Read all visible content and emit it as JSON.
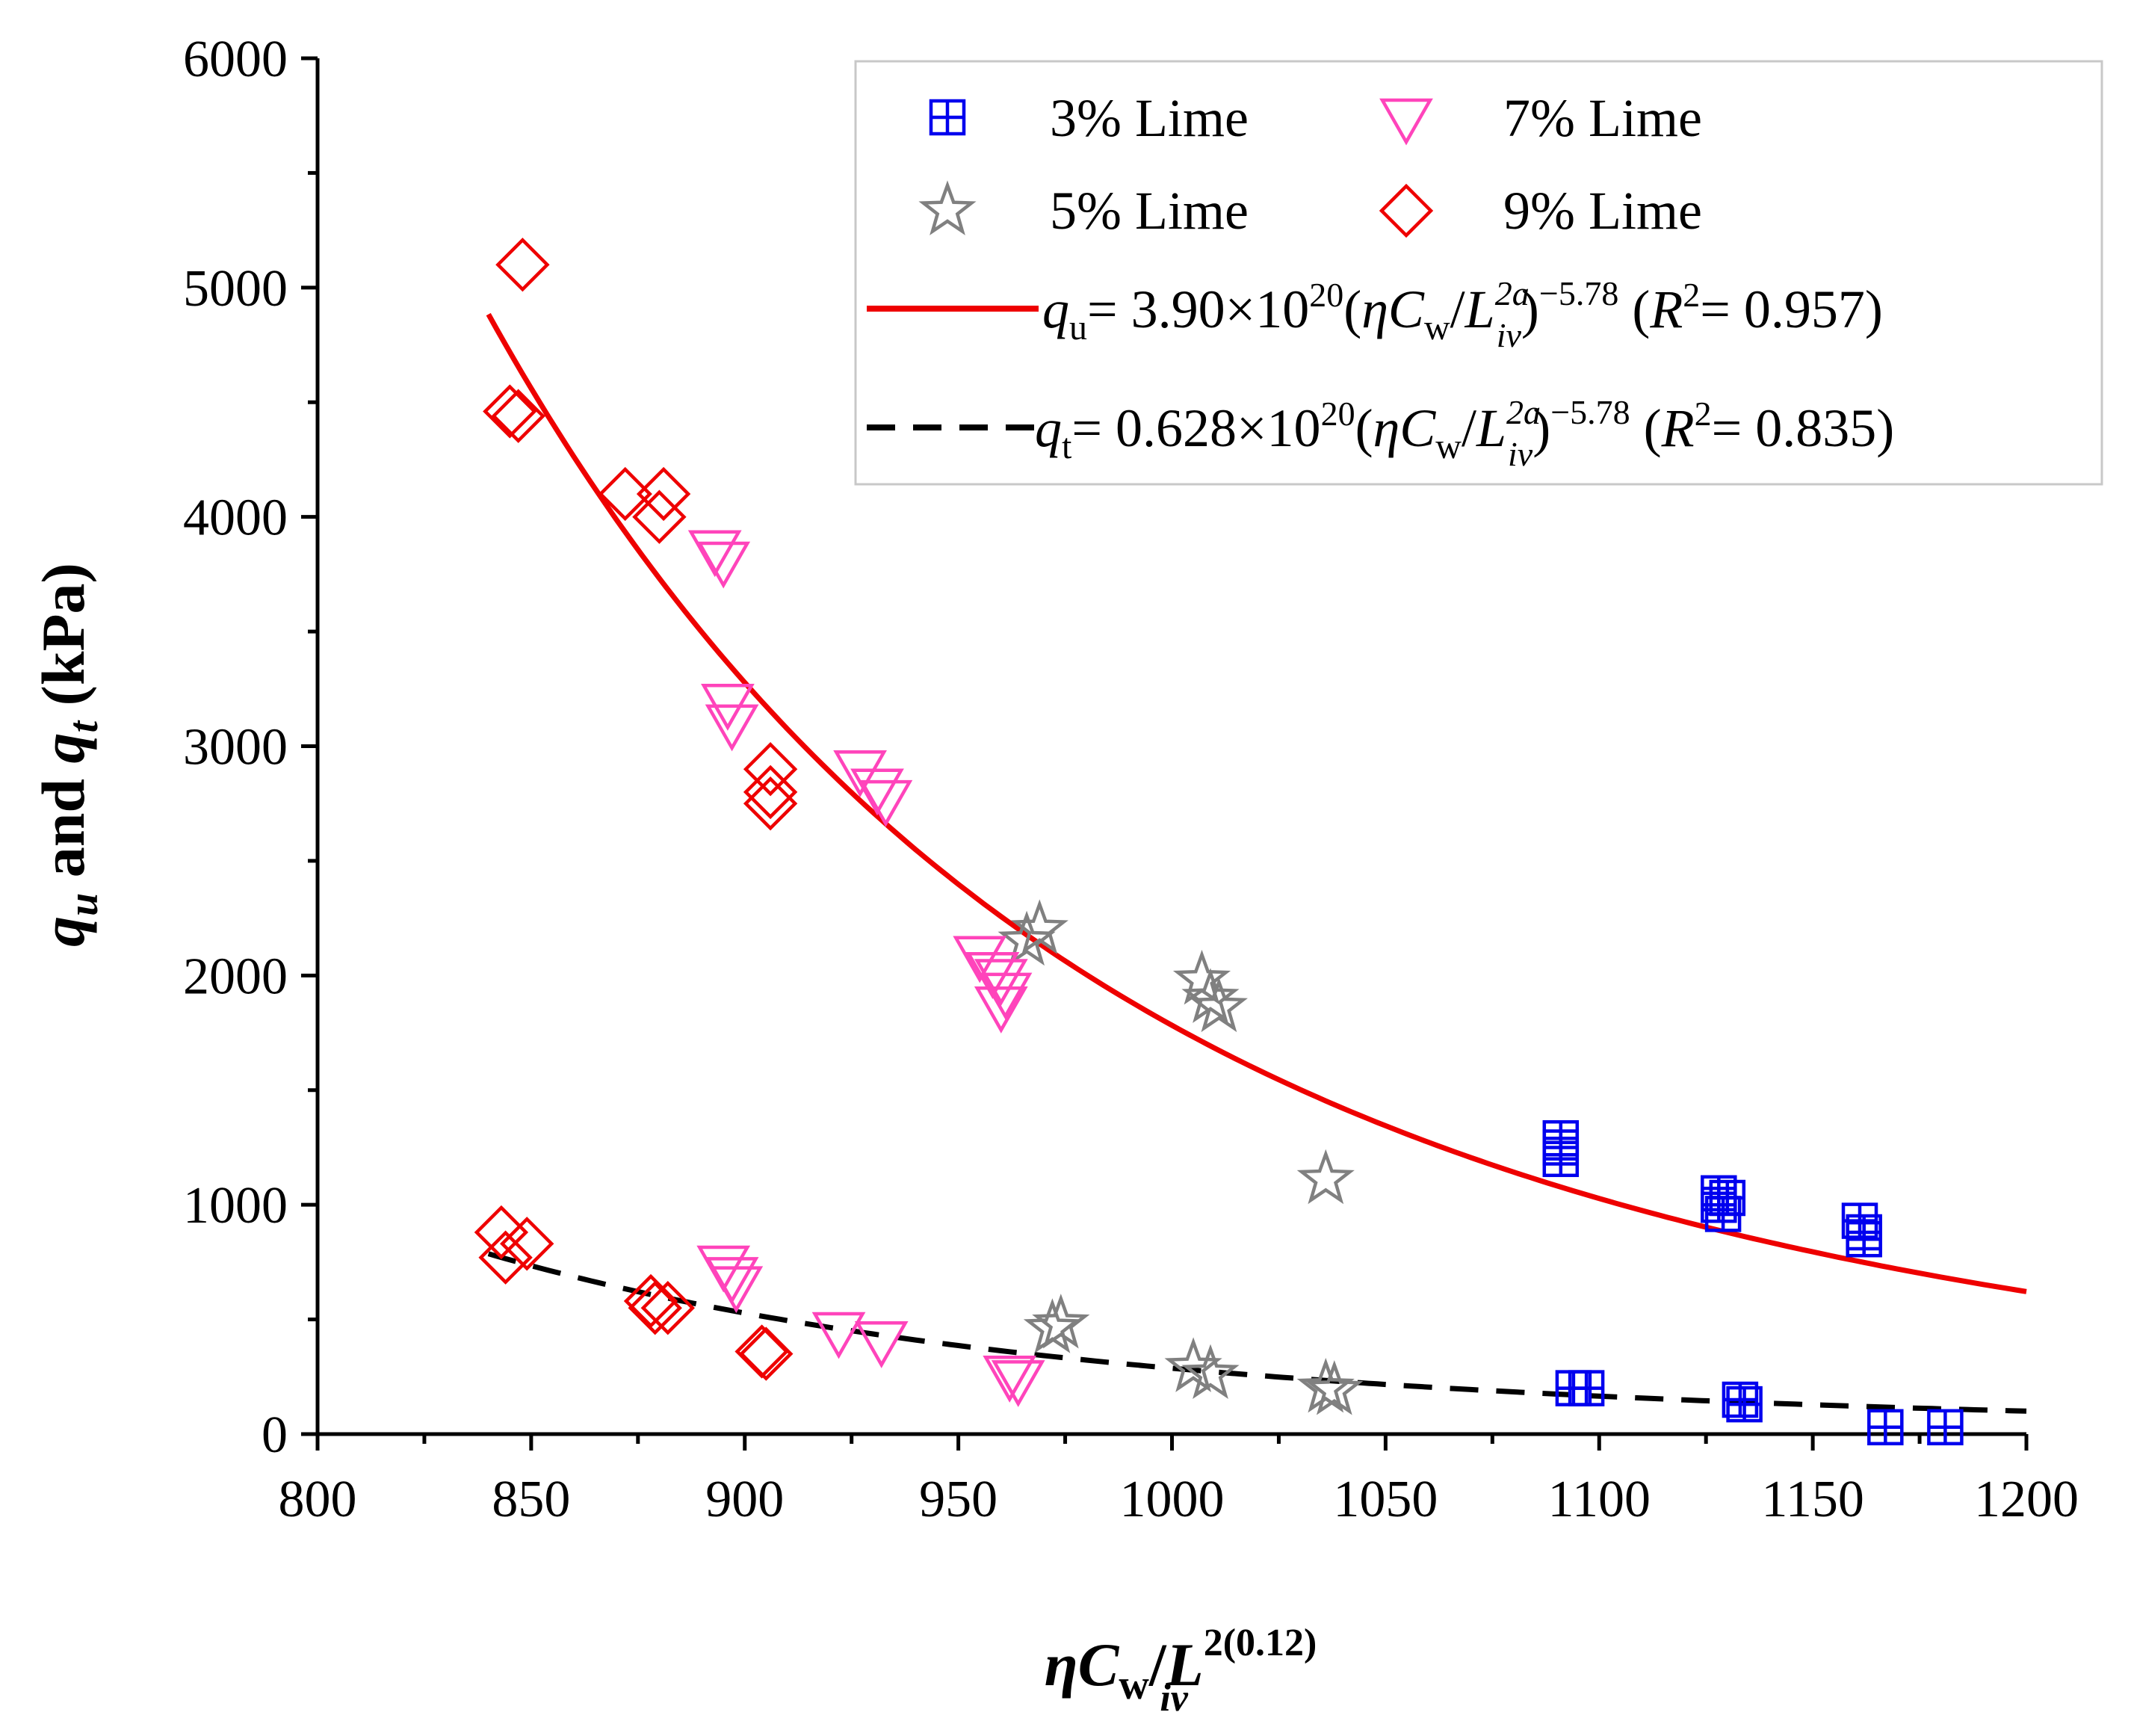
{
  "chart_data": {
    "type": "scatter",
    "title": "",
    "xlabel": "ηCw/Liv^2(0.12)",
    "ylabel": "qu and qt (kPa)",
    "xlim": [
      800,
      1200
    ],
    "ylim": [
      0,
      6000
    ],
    "x_ticks": [
      800,
      850,
      900,
      950,
      1000,
      1050,
      1100,
      1150,
      1200
    ],
    "y_ticks": [
      0,
      1000,
      2000,
      3000,
      4000,
      5000,
      6000
    ],
    "x_tick_labels": [
      "800",
      "850",
      "900",
      "950",
      "1000",
      "1050",
      "1100",
      "1150",
      "1200"
    ],
    "y_tick_labels": [
      "0",
      "1000",
      "2000",
      "3000",
      "4000",
      "5000",
      "6000"
    ],
    "legend_position": "top-right",
    "series": [
      {
        "name": "3% Lime",
        "marker": "square-cross",
        "color": "#0000ee",
        "points": [
          [
            1091,
            1290
          ],
          [
            1091,
            1250
          ],
          [
            1091,
            1200
          ],
          [
            1128,
            1050
          ],
          [
            1128,
            1000
          ],
          [
            1129,
            960
          ],
          [
            1130,
            1030
          ],
          [
            1161,
            930
          ],
          [
            1162,
            880
          ],
          [
            1162,
            850
          ],
          [
            1094,
            200
          ],
          [
            1097,
            200
          ],
          [
            1133,
            150
          ],
          [
            1134,
            130
          ],
          [
            1167,
            30
          ],
          [
            1181,
            30
          ]
        ]
      },
      {
        "name": "5% Lime",
        "marker": "star",
        "color": "#808080",
        "points": [
          [
            966,
            2150
          ],
          [
            969,
            2200
          ],
          [
            1007,
            1980
          ],
          [
            1009,
            1900
          ],
          [
            1011,
            1860
          ],
          [
            1036,
            1110
          ],
          [
            972,
            460
          ],
          [
            974,
            480
          ],
          [
            1005,
            290
          ],
          [
            1009,
            260
          ],
          [
            1036,
            200
          ],
          [
            1038,
            190
          ]
        ]
      },
      {
        "name": "7% Lime",
        "marker": "triangle-down",
        "color": "#ff44bb",
        "points": [
          [
            893,
            3850
          ],
          [
            895,
            3800
          ],
          [
            896,
            3180
          ],
          [
            897,
            3090
          ],
          [
            927,
            2890
          ],
          [
            931,
            2810
          ],
          [
            933,
            2760
          ],
          [
            955,
            2080
          ],
          [
            958,
            2010
          ],
          [
            960,
            1980
          ],
          [
            961,
            1920
          ],
          [
            960,
            1860
          ],
          [
            895,
            730
          ],
          [
            897,
            680
          ],
          [
            898,
            640
          ],
          [
            922,
            440
          ],
          [
            932,
            400
          ],
          [
            962,
            250
          ],
          [
            964,
            230
          ]
        ]
      },
      {
        "name": "9% Lime",
        "marker": "diamond",
        "color": "#ee0000",
        "points": [
          [
            848,
            5100
          ],
          [
            845,
            4460
          ],
          [
            847,
            4440
          ],
          [
            872,
            4100
          ],
          [
            880,
            4000
          ],
          [
            881,
            4100
          ],
          [
            906,
            2900
          ],
          [
            906,
            2800
          ],
          [
            906,
            2750
          ],
          [
            843,
            880
          ],
          [
            844,
            770
          ],
          [
            849,
            830
          ],
          [
            878,
            580
          ],
          [
            879,
            550
          ],
          [
            882,
            550
          ],
          [
            904,
            360
          ],
          [
            905,
            350
          ]
        ]
      }
    ],
    "fits": [
      {
        "name": "qu fit",
        "equation_label": "qu = 3.90×10^20(ηCw/Liv^2a)^−5.78 (R^2 = 0.957)",
        "coefficient": 3.9e+20,
        "exponent": -5.78,
        "r2": 0.957,
        "x_range": [
          840,
          1200
        ],
        "style": "solid",
        "color": "#ee0000"
      },
      {
        "name": "qt fit",
        "equation_label": "qt = 0.628×10^20(ηCw/Liv^2a)^−5.78 (R^2 = 0.835)",
        "coefficient": 6.28e+19,
        "exponent": -5.78,
        "r2": 0.835,
        "x_range": [
          840,
          1200
        ],
        "style": "dashed",
        "color": "#000000"
      }
    ]
  },
  "legend": {
    "entries": [
      {
        "label": "3% Lime"
      },
      {
        "label": "7% Lime"
      },
      {
        "label": "5% Lime"
      },
      {
        "label": "9% Lime"
      }
    ],
    "fit_qu": {
      "var": "q",
      "var_sub": "u",
      "coef": "= 3.90×10",
      "coef_exp": "20",
      "open": "(",
      "eta": "η",
      "c": "C",
      "c_sub": "w",
      "slash": "/",
      "l": "L",
      "l_sup": "2a",
      "l_sub": "iv",
      "close": ")",
      "exp": "−5.78",
      "r_open": " (",
      "r": "R",
      "r_sup": "2",
      "r_val": "= 0.957)"
    },
    "fit_qt": {
      "var": "q",
      "var_sub": "t",
      "coef": "= 0.628×10",
      "coef_exp": "20",
      "open": "(",
      "eta": "η",
      "c": "C",
      "c_sub": "w",
      "slash": "/",
      "l": "L",
      "l_sup": "2a",
      "l_sub": "iv",
      "close": ")",
      "exp": "−5.78",
      "r_open": " (",
      "r": "R",
      "r_sup": "2",
      "r_val": "= 0.835)"
    }
  },
  "axes": {
    "x_title": {
      "eta": "η",
      "c": "C",
      "c_sub": "w",
      "slash": "/",
      "l": "L",
      "l_sup": "2(0.12)",
      "l_sub": "iv"
    },
    "y_title": {
      "q1": "q",
      "sub1": "u",
      "and": " and ",
      "q2": "q",
      "sub2": "t",
      "unit": " (kPa)"
    }
  }
}
